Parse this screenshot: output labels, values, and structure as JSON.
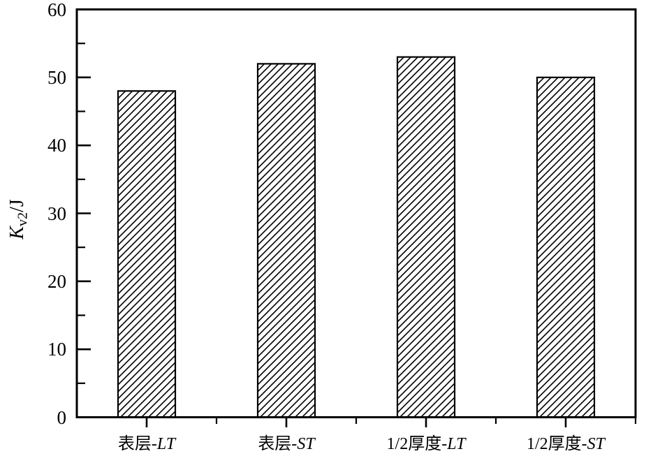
{
  "figure": {
    "background_color": "#ffffff",
    "ink_color": "#000000"
  },
  "chart_data": {
    "type": "bar",
    "title": "",
    "categories": [
      {
        "label": "表层-LT",
        "prefix": "表层-",
        "suffix": "LT"
      },
      {
        "label": "表层-ST",
        "prefix": "表层-",
        "suffix": "ST"
      },
      {
        "label": "1/2厚度-LT",
        "prefix": "1/2厚度-",
        "suffix": "LT"
      },
      {
        "label": "1/2厚度-ST",
        "prefix": "1/2厚度-",
        "suffix": "ST"
      }
    ],
    "values": [
      48,
      52,
      53,
      50
    ],
    "xlabel": "",
    "ylabel": "Kv2/J",
    "ylabel_parts": {
      "base": "K",
      "sub": "v2",
      "rest": "/J"
    },
    "ylim": [
      0,
      60
    ],
    "yticks": [
      0,
      10,
      20,
      30,
      40,
      50,
      60
    ],
    "yticks_minor": [
      5,
      15,
      25,
      35,
      45,
      55
    ],
    "grid": false,
    "legend": null,
    "bar_style": {
      "fill": "#ffffff",
      "hatch": "diagonal-forward",
      "edge_color": "#000000"
    }
  }
}
